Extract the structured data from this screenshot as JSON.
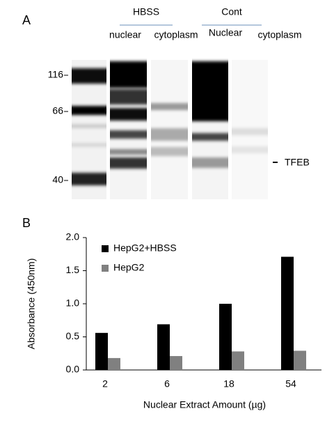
{
  "panel_a": {
    "label": "A",
    "groups": [
      "HBSS",
      "Cont"
    ],
    "lanes": [
      "nuclear",
      "cytoplasm",
      "Nuclear",
      "cytoplasm"
    ],
    "markers": [
      "116",
      "66",
      "40"
    ],
    "band_label": "TFEB"
  },
  "panel_b_label": "B",
  "chart_data": {
    "type": "bar",
    "xlabel": "Nuclear Extract Amount (µg)",
    "ylabel": "Absorbance (450nm)",
    "categories": [
      "2",
      "6",
      "18",
      "54"
    ],
    "series": [
      {
        "name": "HepG2+HBSS",
        "color": "#000000",
        "values": [
          0.56,
          0.69,
          1.0,
          1.71
        ]
      },
      {
        "name": "HepG2",
        "color": "#808080",
        "values": [
          0.18,
          0.21,
          0.28,
          0.29
        ]
      }
    ],
    "ylim": [
      0,
      2
    ],
    "yticks": [
      {
        "value": 0,
        "label": "0.0"
      },
      {
        "value": 0.5,
        "label": "0.5"
      },
      {
        "value": 1,
        "label": "1.0"
      },
      {
        "value": 1.5,
        "label": "1.5"
      },
      {
        "value": 2,
        "label": "2.0"
      }
    ],
    "grid": false
  }
}
